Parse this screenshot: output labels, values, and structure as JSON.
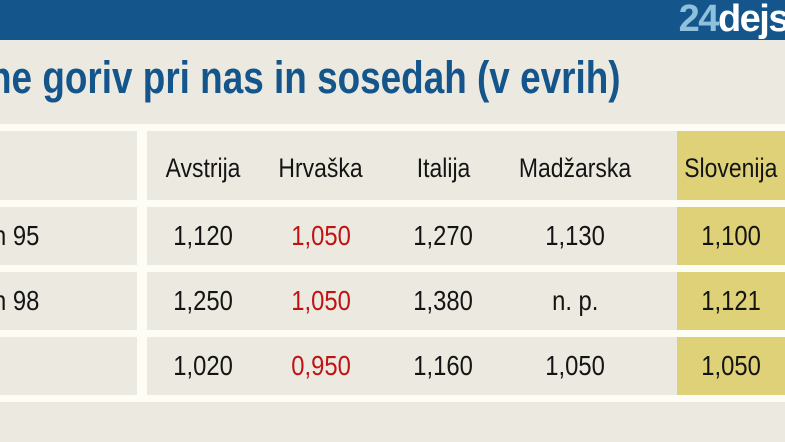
{
  "topbar": {
    "logo": {
      "prefix": "24",
      "suffix": "dejs"
    }
  },
  "title": "ne goriv pri nas in sosedah (v evrih)",
  "table": {
    "columns": [
      "Avstrija",
      "Hrvaška",
      "Italija",
      "Madžarska",
      "Slovenija"
    ],
    "highlighted_column": "Slovenija",
    "red_value_column": "Hrvaška",
    "rows": [
      {
        "label": "n 95",
        "values": [
          "1,120",
          "1,050",
          "1,270",
          "1,130",
          "1,100"
        ]
      },
      {
        "label": "n 98",
        "values": [
          "1,250",
          "1,050",
          "1,380",
          "n. p.",
          "1,121"
        ]
      },
      {
        "label": "",
        "values": [
          "1,020",
          "0,950",
          "1,160",
          "1,050",
          "1,050"
        ]
      }
    ]
  },
  "chart_data": {
    "type": "table",
    "title": "ne goriv pri nas in sosedah (v evrih)",
    "columns": [
      "Avstrija",
      "Hrvaška",
      "Italija",
      "Madžarska",
      "Slovenija"
    ],
    "rows": [
      {
        "label": "n 95",
        "values": [
          1.12,
          1.05,
          1.27,
          1.13,
          1.1
        ]
      },
      {
        "label": "n 98",
        "values": [
          1.25,
          1.05,
          1.38,
          null,
          1.121
        ]
      },
      {
        "label": "",
        "values": [
          1.02,
          0.95,
          1.16,
          1.05,
          1.05
        ]
      }
    ],
    "notes": "values in euros; 'n. p.' shown where data unavailable; Hrvaška column values shown in red; Slovenija column highlighted yellow"
  },
  "colors": {
    "bar-blue": "#14568C",
    "logo-lightblue": "#8FC0DC",
    "title-blue": "#14568C",
    "page-beige": "#ECEAE0",
    "separator-white": "#FDFCF5",
    "highlight-yellow": "#DFD178",
    "value-black": "#141414",
    "value-red": "#C01414"
  }
}
